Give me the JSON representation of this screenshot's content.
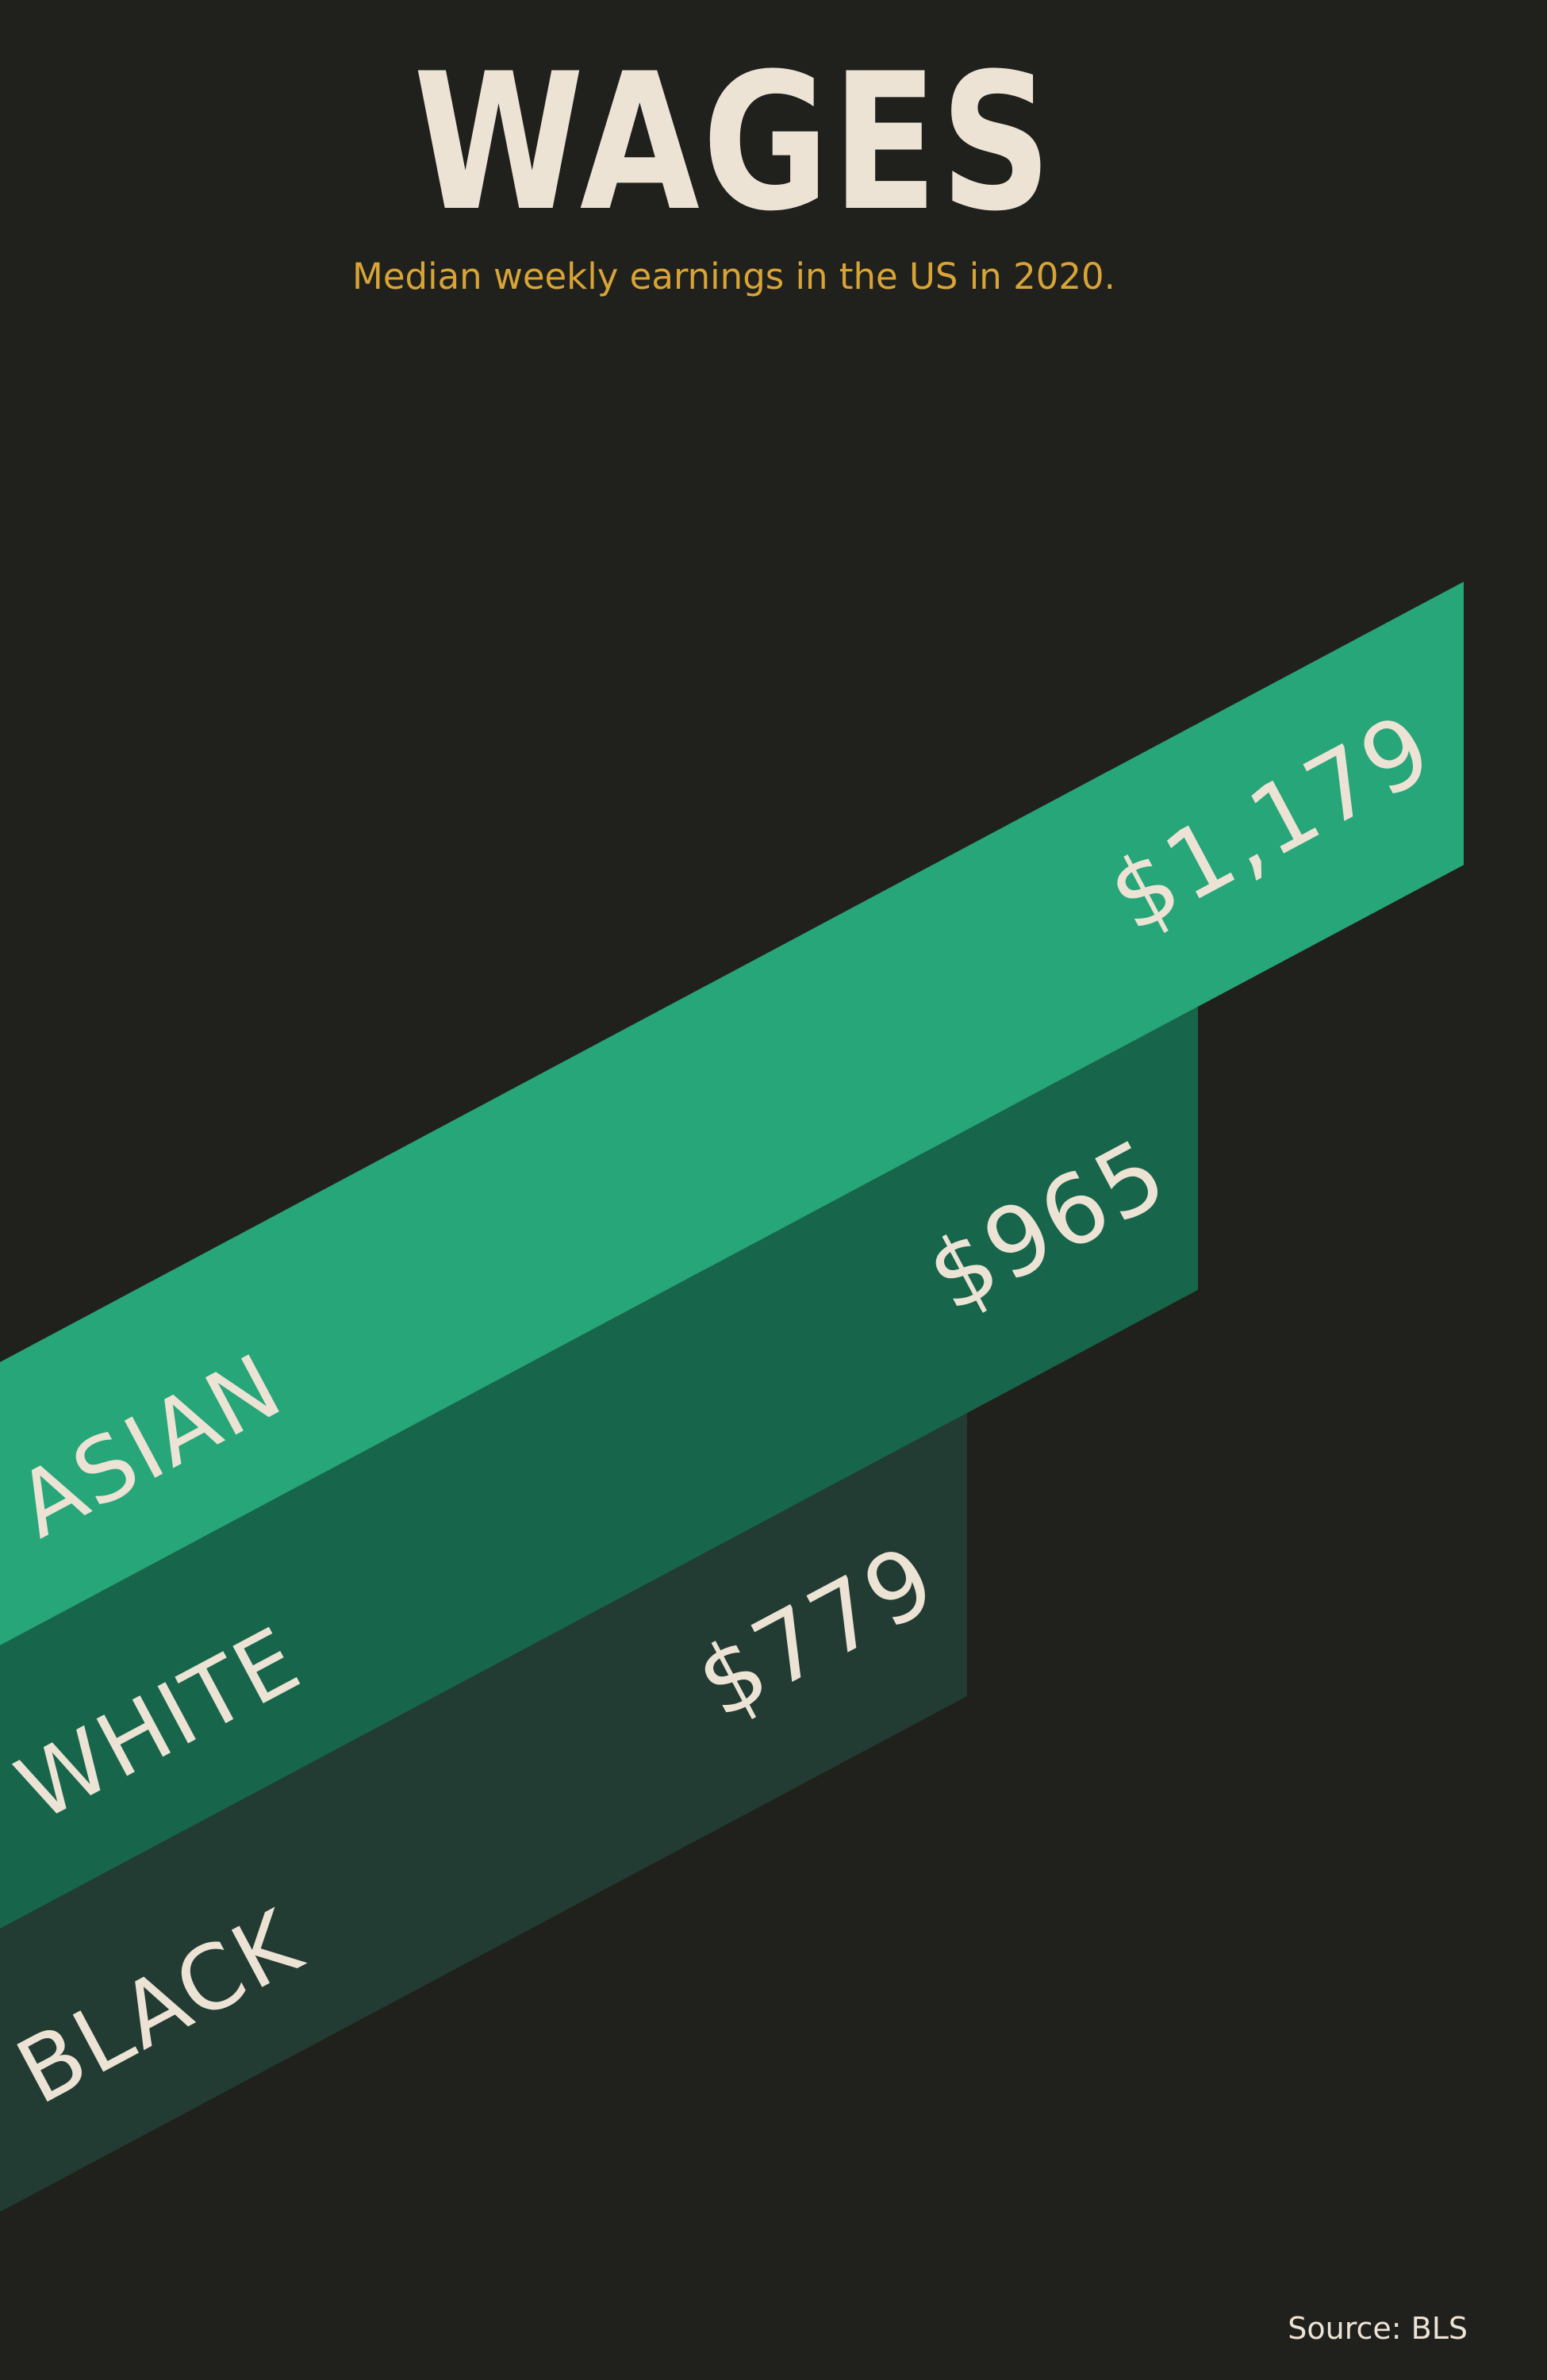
{
  "title": "WAGES",
  "subtitle": "Median weekly earnings in the US in 2020.",
  "source": "Source: BLS",
  "colors": {
    "background": "#20211d",
    "text": "#ece3d5",
    "subtitle": "#d9a437"
  },
  "chart_data": {
    "type": "bar",
    "title": "WAGES",
    "subtitle": "Median weekly earnings in the US in 2020.",
    "categories": [
      "ASIAN",
      "WHITE",
      "BLACK"
    ],
    "values": [
      1179,
      965,
      779
    ],
    "value_labels": [
      "$1,179",
      "$965",
      "$779"
    ],
    "colors": [
      "#27a679",
      "#17664b",
      "#223b33"
    ],
    "unit": "USD per week",
    "grid": false,
    "legend": "none"
  }
}
